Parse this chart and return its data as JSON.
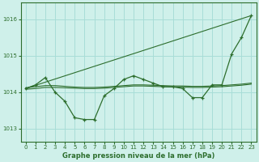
{
  "title": "Graphe pression niveau de la mer (hPa)",
  "background_color": "#cff0ea",
  "grid_color": "#a8ddd7",
  "line_color": "#2d6e2d",
  "xlim": [
    -0.5,
    23.5
  ],
  "ylim": [
    1012.65,
    1016.45
  ],
  "yticks": [
    1013,
    1014,
    1015,
    1016
  ],
  "xticks": [
    0,
    1,
    2,
    3,
    4,
    5,
    6,
    7,
    8,
    9,
    10,
    11,
    12,
    13,
    14,
    15,
    16,
    17,
    18,
    19,
    20,
    21,
    22,
    23
  ],
  "main_data": {
    "x": [
      0,
      1,
      2,
      3,
      4,
      5,
      6,
      7,
      8,
      9,
      10,
      11,
      12,
      13,
      14,
      15,
      16,
      17,
      18,
      19,
      20,
      21,
      22,
      23
    ],
    "y": [
      1014.1,
      1014.2,
      1014.4,
      1014.0,
      1013.75,
      1013.3,
      1013.25,
      1013.25,
      1013.9,
      1014.1,
      1014.35,
      1014.45,
      1014.35,
      1014.25,
      1014.15,
      1014.15,
      1014.1,
      1013.85,
      1013.85,
      1014.2,
      1014.2,
      1015.05,
      1015.5,
      1016.1
    ]
  },
  "diagonal_line": {
    "x": [
      0,
      23
    ],
    "y": [
      1014.1,
      1016.1
    ]
  },
  "smooth_line1": {
    "x": [
      0,
      1,
      2,
      3,
      4,
      5,
      6,
      7,
      8,
      9,
      10,
      11,
      12,
      13,
      14,
      15,
      16,
      17,
      18,
      19,
      20,
      21,
      22,
      23
    ],
    "y": [
      1014.12,
      1014.15,
      1014.18,
      1014.18,
      1014.16,
      1014.14,
      1014.13,
      1014.13,
      1014.14,
      1014.16,
      1014.18,
      1014.2,
      1014.2,
      1014.19,
      1014.18,
      1014.17,
      1014.17,
      1014.16,
      1014.16,
      1014.17,
      1014.18,
      1014.2,
      1014.22,
      1014.25
    ]
  },
  "smooth_line2": {
    "x": [
      0,
      1,
      2,
      3,
      4,
      5,
      6,
      7,
      8,
      9,
      10,
      11,
      12,
      13,
      14,
      15,
      16,
      17,
      18,
      19,
      20,
      21,
      22,
      23
    ],
    "y": [
      1014.08,
      1014.1,
      1014.13,
      1014.13,
      1014.12,
      1014.11,
      1014.1,
      1014.1,
      1014.11,
      1014.13,
      1014.15,
      1014.17,
      1014.17,
      1014.16,
      1014.15,
      1014.14,
      1014.14,
      1014.13,
      1014.13,
      1014.14,
      1014.15,
      1014.17,
      1014.19,
      1014.22
    ]
  }
}
